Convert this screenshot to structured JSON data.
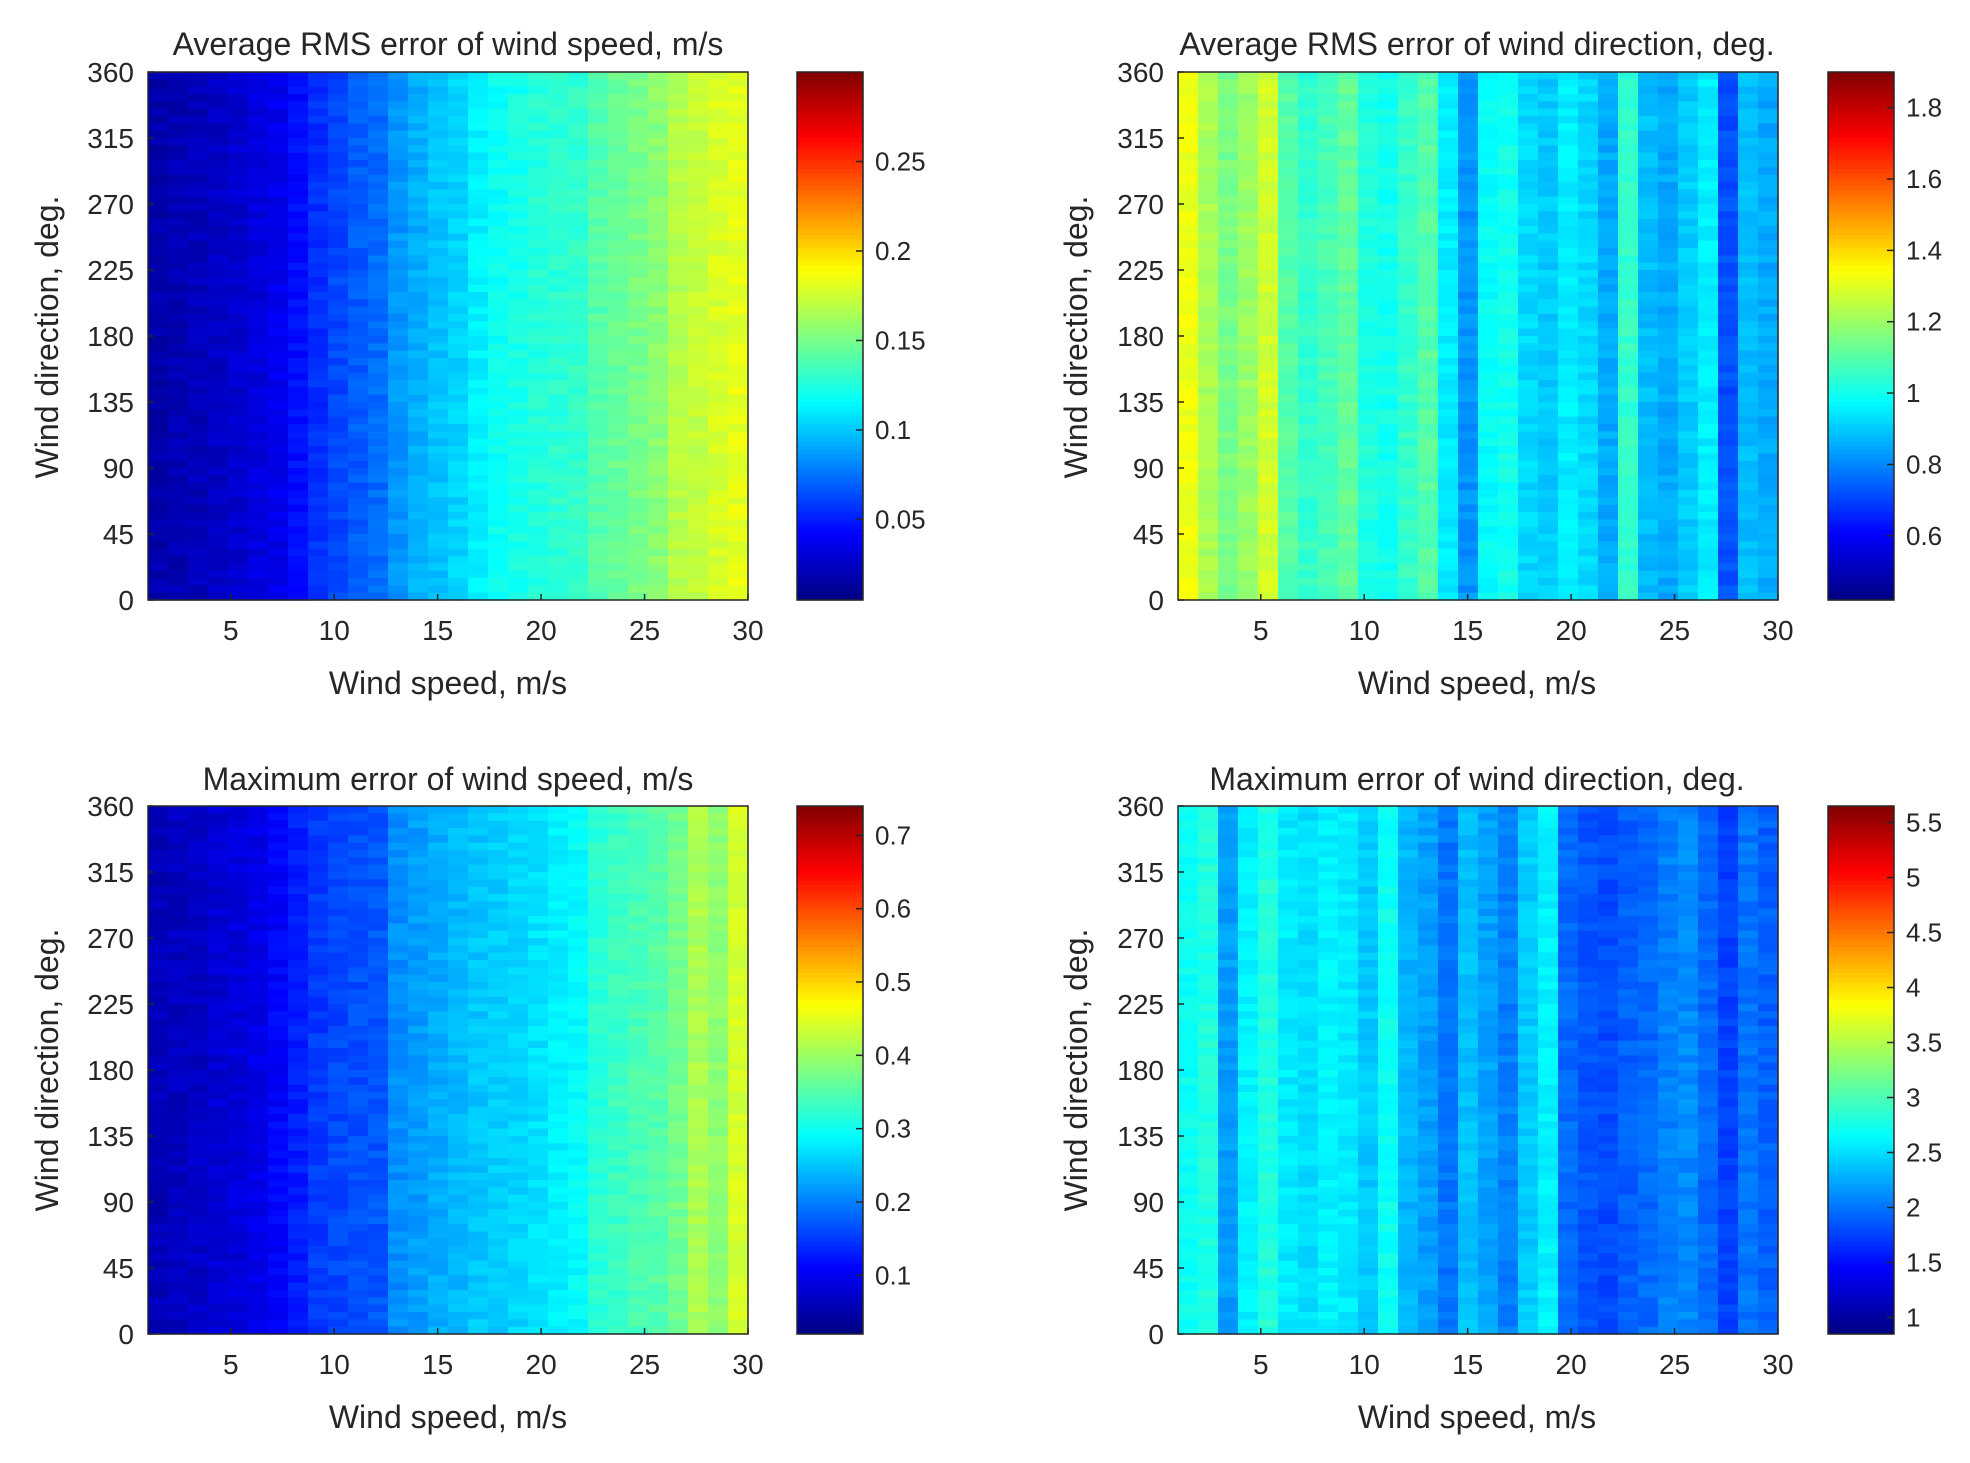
{
  "chart_data": [
    {
      "type": "heatmap",
      "title": "Average RMS error of wind speed, m/s",
      "xlabel": "Wind speed, m/s",
      "ylabel": "Wind direction, deg.",
      "xlim": [
        1,
        30
      ],
      "ylim": [
        0,
        360
      ],
      "xticks": [
        5,
        10,
        15,
        20,
        25,
        30
      ],
      "yticks": [
        0,
        45,
        90,
        135,
        180,
        225,
        270,
        315,
        360
      ],
      "colorbar": {
        "min": 0.005,
        "max": 0.3,
        "ticks": [
          0.05,
          0.1,
          0.15,
          0.2,
          0.25
        ]
      },
      "x": [
        1,
        2,
        3,
        4,
        5,
        6,
        7,
        8,
        9,
        10,
        11,
        12,
        13,
        14,
        15,
        16,
        17,
        18,
        19,
        20,
        21,
        22,
        23,
        24,
        25,
        26,
        27,
        28,
        29,
        30
      ],
      "column_values": [
        0.018,
        0.02,
        0.022,
        0.025,
        0.028,
        0.032,
        0.037,
        0.045,
        0.055,
        0.062,
        0.068,
        0.073,
        0.085,
        0.092,
        0.098,
        0.103,
        0.112,
        0.118,
        0.122,
        0.126,
        0.128,
        0.13,
        0.14,
        0.145,
        0.15,
        0.155,
        0.168,
        0.172,
        0.178,
        0.182
      ]
    },
    {
      "type": "heatmap",
      "title": "Average RMS error of wind direction, deg.",
      "xlabel": "Wind speed, m/s",
      "ylabel": "Wind direction, deg.",
      "xlim": [
        1,
        30
      ],
      "ylim": [
        0,
        360
      ],
      "xticks": [
        5,
        10,
        15,
        20,
        25,
        30
      ],
      "yticks": [
        0,
        45,
        90,
        135,
        180,
        225,
        270,
        315,
        360
      ],
      "colorbar": {
        "min": 0.42,
        "max": 1.9,
        "ticks": [
          0.6,
          0.8,
          1,
          1.2,
          1.4,
          1.6,
          1.8
        ]
      },
      "x": [
        1,
        2,
        3,
        4,
        5,
        6,
        7,
        8,
        9,
        10,
        11,
        12,
        13,
        14,
        15,
        16,
        17,
        18,
        19,
        20,
        21,
        22,
        23,
        24,
        25,
        26,
        27,
        28,
        29,
        30
      ],
      "column_values": [
        1.32,
        1.22,
        1.15,
        1.2,
        1.28,
        1.1,
        1.05,
        1.08,
        1.12,
        1.02,
        1.0,
        1.05,
        1.1,
        0.95,
        0.82,
        0.98,
        1.0,
        0.92,
        0.9,
        0.95,
        0.92,
        0.85,
        1.05,
        0.88,
        0.85,
        0.9,
        0.95,
        0.72,
        0.88,
        0.85
      ]
    },
    {
      "type": "heatmap",
      "title": "Maximum error of wind speed, m/s",
      "xlabel": "Wind speed, m/s",
      "ylabel": "Wind direction, deg.",
      "xlim": [
        1,
        30
      ],
      "ylim": [
        0,
        360
      ],
      "xticks": [
        5,
        10,
        15,
        20,
        25,
        30
      ],
      "yticks": [
        0,
        45,
        90,
        135,
        180,
        225,
        270,
        315,
        360
      ],
      "colorbar": {
        "min": 0.02,
        "max": 0.74,
        "ticks": [
          0.1,
          0.2,
          0.3,
          0.4,
          0.5,
          0.6,
          0.7
        ]
      },
      "x": [
        1,
        2,
        3,
        4,
        5,
        6,
        7,
        8,
        9,
        10,
        11,
        12,
        13,
        14,
        15,
        16,
        17,
        18,
        19,
        20,
        21,
        22,
        23,
        24,
        25,
        26,
        27,
        28,
        29,
        30
      ],
      "column_values": [
        0.06,
        0.065,
        0.07,
        0.078,
        0.085,
        0.095,
        0.11,
        0.13,
        0.15,
        0.16,
        0.165,
        0.17,
        0.21,
        0.22,
        0.23,
        0.24,
        0.25,
        0.255,
        0.26,
        0.27,
        0.28,
        0.29,
        0.32,
        0.33,
        0.34,
        0.35,
        0.37,
        0.41,
        0.39,
        0.44
      ]
    },
    {
      "type": "heatmap",
      "title": "Maximum error of wind direction, deg.",
      "xlabel": "Wind speed, m/s",
      "ylabel": "Wind direction, deg.",
      "xlim": [
        1,
        30
      ],
      "ylim": [
        0,
        360
      ],
      "xticks": [
        5,
        10,
        15,
        20,
        25,
        30
      ],
      "yticks": [
        0,
        45,
        90,
        135,
        180,
        225,
        270,
        315,
        360
      ],
      "colorbar": {
        "min": 0.85,
        "max": 5.65,
        "ticks": [
          1,
          1.5,
          2,
          2.5,
          3,
          3.5,
          4,
          4.5,
          5,
          5.5
        ]
      },
      "x": [
        1,
        2,
        3,
        4,
        5,
        6,
        7,
        8,
        9,
        10,
        11,
        12,
        13,
        14,
        15,
        16,
        17,
        18,
        19,
        20,
        21,
        22,
        23,
        24,
        25,
        26,
        27,
        28,
        29,
        30
      ],
      "column_values": [
        2.7,
        2.8,
        2.2,
        2.6,
        2.8,
        2.55,
        2.5,
        2.6,
        2.55,
        2.4,
        2.7,
        2.3,
        2.2,
        2.0,
        2.35,
        2.2,
        2.05,
        2.4,
        2.6,
        1.95,
        1.85,
        1.8,
        1.9,
        1.95,
        2.05,
        2.1,
        1.95,
        1.75,
        2.0,
        1.9
      ]
    }
  ]
}
